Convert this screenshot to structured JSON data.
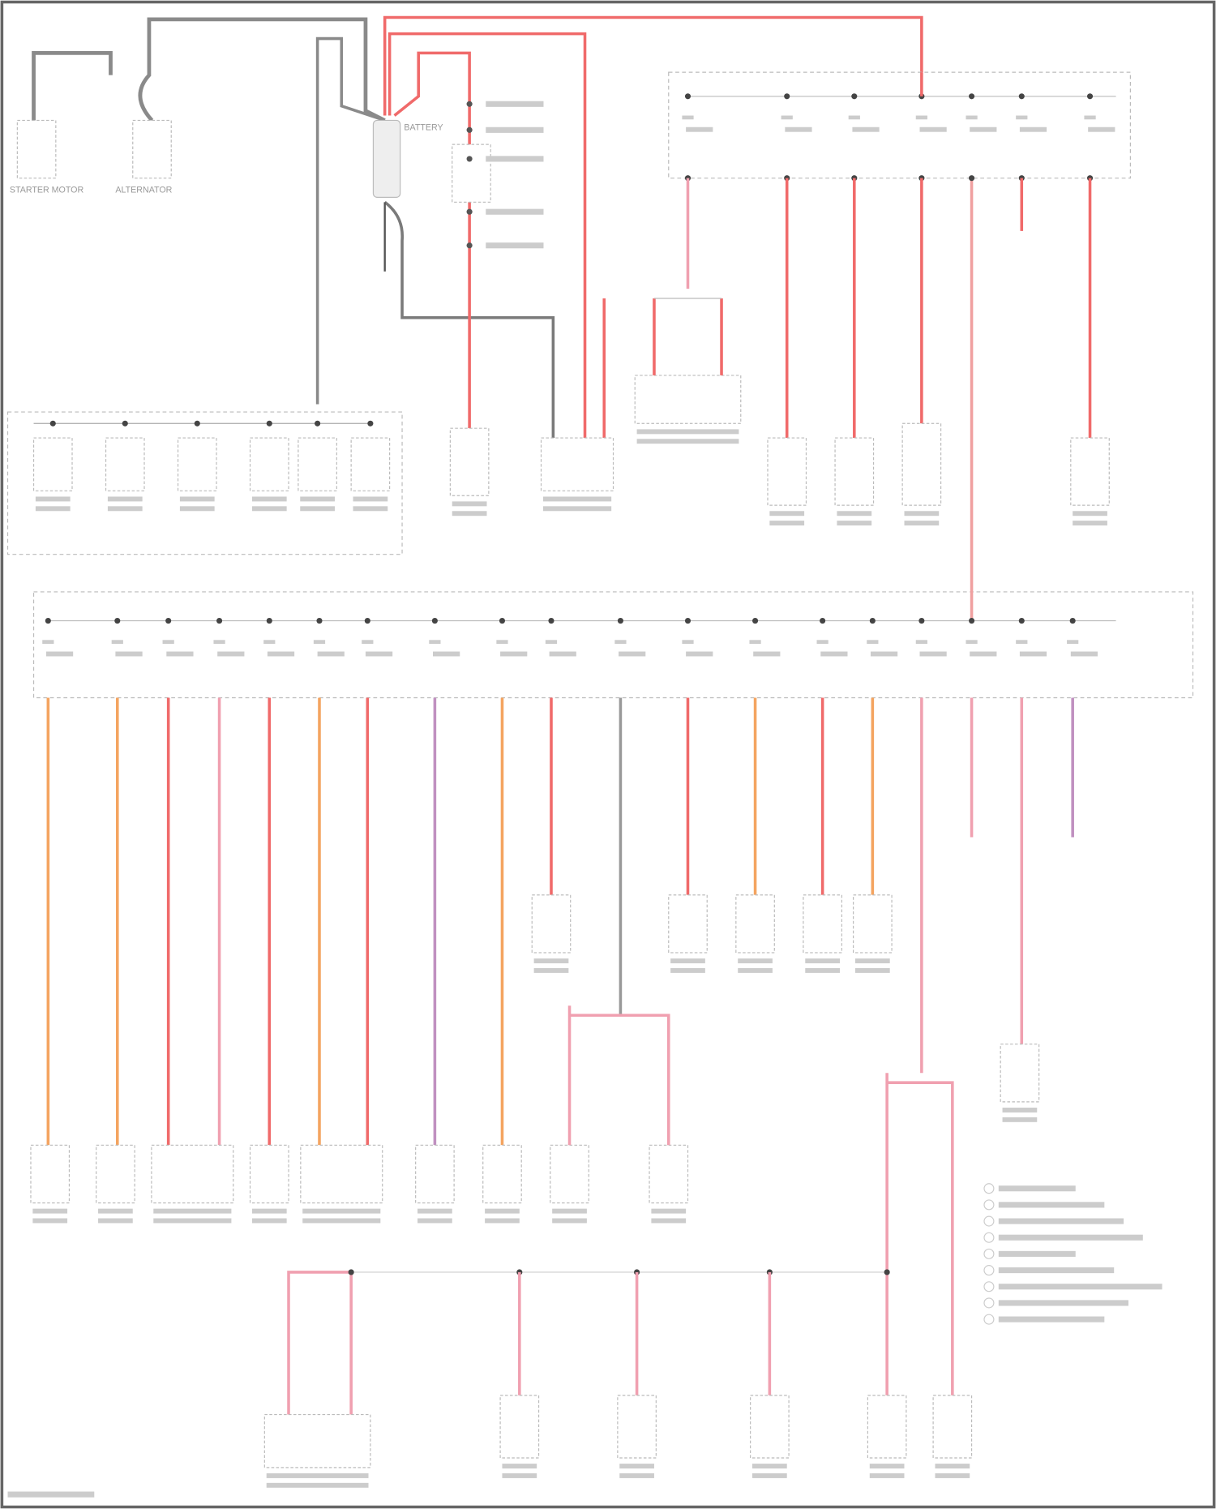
{
  "diagram": {
    "components": {
      "starter": "STARTER MOTOR",
      "alternator": "ALTERNATOR",
      "battery": "BATTERY"
    },
    "wire_colors": {
      "ground": "#7a7a7a",
      "battery_feed": "#f06a6a",
      "orange": "#f4a460",
      "pink": "#f0a0b0",
      "violet": "#c090c0"
    },
    "legend_item_count": 9
  }
}
